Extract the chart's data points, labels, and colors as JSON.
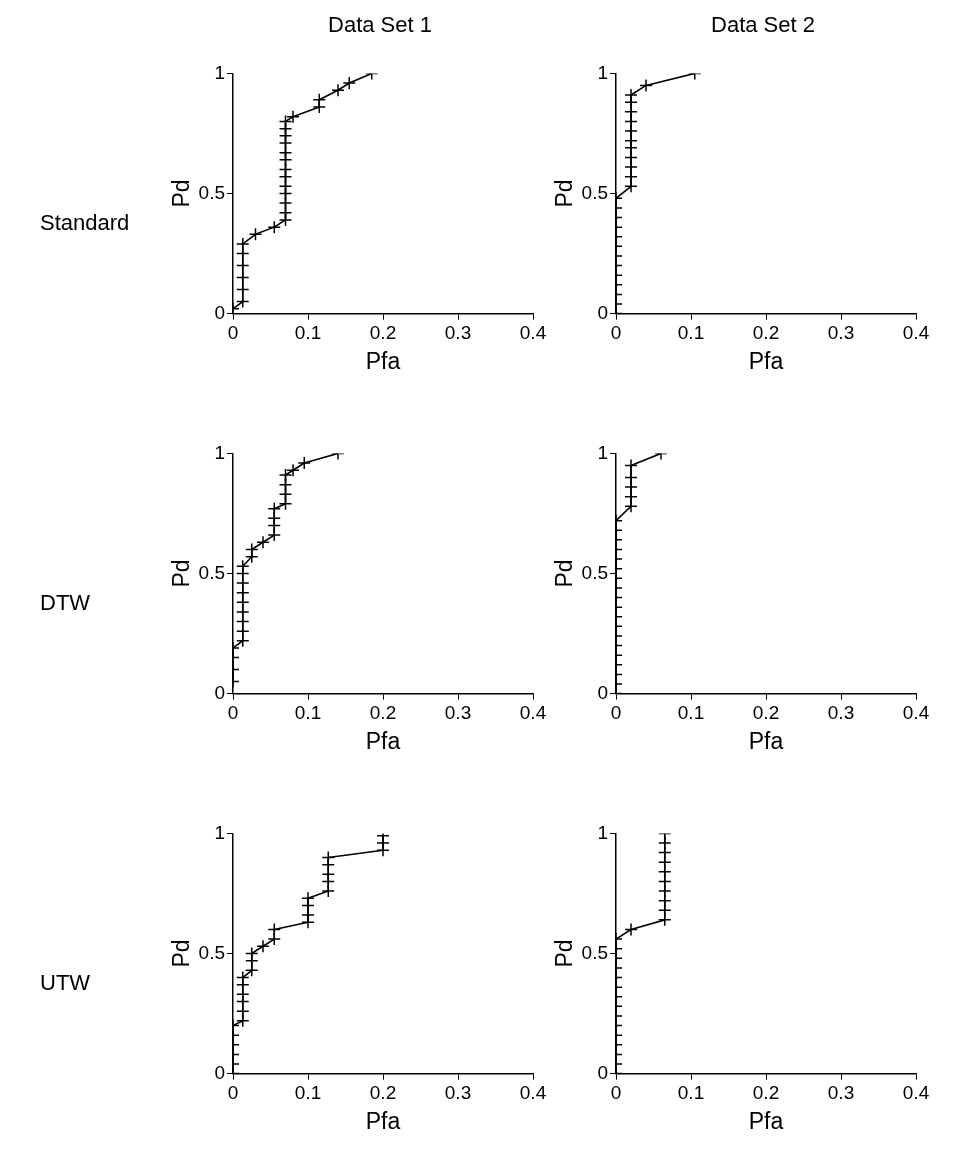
{
  "chart_data": [
    {
      "type": "line",
      "title": "Data Set 1",
      "annotations": [
        "Standard"
      ],
      "xlabel": "Pfa",
      "ylabel": "Pd",
      "marker": "cross",
      "legend": false,
      "grid": false,
      "xlim": [
        0,
        0.4
      ],
      "xticks": [
        0,
        0.1,
        0.2,
        0.3,
        0.4
      ],
      "ylim": [
        0,
        1
      ],
      "yticks": [
        0,
        0.5,
        1
      ],
      "series": [
        {
          "color": "#000000",
          "x": [
            0,
            0.013,
            0.013,
            0.013,
            0.013,
            0.013,
            0.013,
            0.03,
            0.055,
            0.07,
            0.07,
            0.07,
            0.07,
            0.07,
            0.07,
            0.07,
            0.07,
            0.07,
            0.07,
            0.07,
            0.07,
            0.07,
            0.08,
            0.115,
            0.115,
            0.14,
            0.155,
            0.185
          ],
          "values": [
            0.02,
            0.05,
            0.1,
            0.15,
            0.2,
            0.25,
            0.29,
            0.33,
            0.36,
            0.39,
            0.42,
            0.46,
            0.5,
            0.53,
            0.57,
            0.6,
            0.64,
            0.67,
            0.71,
            0.74,
            0.77,
            0.8,
            0.82,
            0.86,
            0.89,
            0.93,
            0.96,
            1.0
          ]
        }
      ]
    },
    {
      "type": "line",
      "title": "Data Set 2",
      "xlabel": "Pfa",
      "ylabel": "Pd",
      "marker": "cross",
      "legend": false,
      "grid": false,
      "xlim": [
        0,
        0.4
      ],
      "xticks": [
        0,
        0.1,
        0.2,
        0.3,
        0.4
      ],
      "ylim": [
        0,
        1
      ],
      "yticks": [
        0,
        0.5,
        1
      ],
      "series": [
        {
          "color": "#000000",
          "x": [
            0,
            0,
            0,
            0,
            0,
            0,
            0,
            0,
            0,
            0,
            0,
            0,
            0,
            0.02,
            0.02,
            0.02,
            0.02,
            0.02,
            0.02,
            0.02,
            0.02,
            0.02,
            0.02,
            0.02,
            0.04,
            0.105
          ],
          "values": [
            0,
            0.04,
            0.08,
            0.12,
            0.16,
            0.2,
            0.24,
            0.28,
            0.32,
            0.36,
            0.4,
            0.44,
            0.48,
            0.53,
            0.57,
            0.61,
            0.65,
            0.69,
            0.72,
            0.76,
            0.8,
            0.84,
            0.88,
            0.91,
            0.95,
            1.0
          ]
        }
      ]
    },
    {
      "type": "line",
      "annotations": [
        "DTW"
      ],
      "xlabel": "Pfa",
      "ylabel": "Pd",
      "marker": "cross",
      "legend": false,
      "grid": false,
      "xlim": [
        0,
        0.4
      ],
      "xticks": [
        0,
        0.1,
        0.2,
        0.3,
        0.4
      ],
      "ylim": [
        0,
        1
      ],
      "yticks": [
        0,
        0.5,
        1
      ],
      "series": [
        {
          "color": "#000000",
          "x": [
            0,
            0,
            0,
            0,
            0.013,
            0.013,
            0.013,
            0.013,
            0.013,
            0.013,
            0.013,
            0.013,
            0.013,
            0.025,
            0.025,
            0.04,
            0.055,
            0.055,
            0.055,
            0.055,
            0.07,
            0.07,
            0.07,
            0.07,
            0.08,
            0.095,
            0.14
          ],
          "values": [
            0.05,
            0.1,
            0.15,
            0.19,
            0.22,
            0.26,
            0.3,
            0.34,
            0.38,
            0.42,
            0.46,
            0.5,
            0.53,
            0.57,
            0.6,
            0.63,
            0.66,
            0.7,
            0.73,
            0.77,
            0.79,
            0.83,
            0.87,
            0.91,
            0.93,
            0.96,
            1.0
          ]
        }
      ]
    },
    {
      "type": "line",
      "xlabel": "Pfa",
      "ylabel": "Pd",
      "marker": "cross",
      "legend": false,
      "grid": false,
      "xlim": [
        0,
        0.4
      ],
      "xticks": [
        0,
        0.1,
        0.2,
        0.3,
        0.4
      ],
      "ylim": [
        0,
        1
      ],
      "yticks": [
        0,
        0.5,
        1
      ],
      "series": [
        {
          "color": "#000000",
          "x": [
            0,
            0,
            0,
            0,
            0,
            0,
            0,
            0,
            0,
            0,
            0,
            0,
            0,
            0,
            0,
            0,
            0,
            0,
            0,
            0.02,
            0.02,
            0.02,
            0.02,
            0.02,
            0.06
          ],
          "values": [
            0,
            0.04,
            0.08,
            0.12,
            0.16,
            0.2,
            0.24,
            0.28,
            0.32,
            0.36,
            0.4,
            0.44,
            0.48,
            0.52,
            0.56,
            0.6,
            0.64,
            0.68,
            0.72,
            0.78,
            0.82,
            0.86,
            0.9,
            0.95,
            1.0
          ]
        }
      ]
    },
    {
      "type": "line",
      "annotations": [
        "UTW"
      ],
      "xlabel": "Pfa",
      "ylabel": "Pd",
      "marker": "cross",
      "legend": false,
      "grid": false,
      "xlim": [
        0,
        0.4
      ],
      "xticks": [
        0,
        0.1,
        0.2,
        0.3,
        0.4
      ],
      "ylim": [
        0,
        1
      ],
      "yticks": [
        0,
        0.5,
        1
      ],
      "series": [
        {
          "color": "#000000",
          "x": [
            0,
            0,
            0,
            0,
            0,
            0,
            0.013,
            0.013,
            0.013,
            0.013,
            0.013,
            0.013,
            0.025,
            0.025,
            0.025,
            0.04,
            0.055,
            0.055,
            0.1,
            0.1,
            0.1,
            0.1,
            0.127,
            0.127,
            0.127,
            0.127,
            0.127,
            0.2,
            0.2,
            0.2
          ],
          "values": [
            0,
            0.04,
            0.08,
            0.12,
            0.16,
            0.2,
            0.22,
            0.26,
            0.3,
            0.33,
            0.37,
            0.4,
            0.43,
            0.47,
            0.5,
            0.53,
            0.56,
            0.6,
            0.63,
            0.66,
            0.7,
            0.73,
            0.76,
            0.8,
            0.83,
            0.87,
            0.9,
            0.93,
            0.96,
            0.99
          ]
        }
      ]
    },
    {
      "type": "line",
      "xlabel": "Pfa",
      "ylabel": "Pd",
      "marker": "cross",
      "legend": false,
      "grid": false,
      "xlim": [
        0,
        0.4
      ],
      "xticks": [
        0,
        0.1,
        0.2,
        0.3,
        0.4
      ],
      "ylim": [
        0,
        1
      ],
      "yticks": [
        0,
        0.5,
        1
      ],
      "series": [
        {
          "color": "#000000",
          "x": [
            0,
            0,
            0,
            0,
            0,
            0,
            0,
            0,
            0,
            0,
            0,
            0,
            0,
            0,
            0,
            0.02,
            0.065,
            0.065,
            0.065,
            0.065,
            0.065,
            0.065,
            0.065,
            0.065,
            0.065,
            0.065
          ],
          "values": [
            0,
            0.04,
            0.08,
            0.12,
            0.16,
            0.2,
            0.24,
            0.28,
            0.32,
            0.36,
            0.4,
            0.44,
            0.48,
            0.52,
            0.56,
            0.6,
            0.64,
            0.68,
            0.72,
            0.76,
            0.8,
            0.84,
            0.88,
            0.92,
            0.96,
            1.0
          ]
        }
      ]
    }
  ]
}
